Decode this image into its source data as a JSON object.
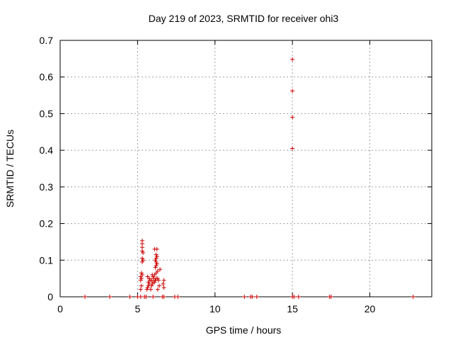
{
  "chart_data": {
    "type": "scatter",
    "title": "Day 219 of 2023, SRMTID for receiver ohi3",
    "xlabel": "GPS time / hours",
    "ylabel": "SRMTID / TECUs",
    "xlim": [
      0,
      24
    ],
    "ylim": [
      0,
      0.7
    ],
    "xticks": [
      0,
      5,
      10,
      15,
      20
    ],
    "yticks": [
      0,
      0.1,
      0.2,
      0.3,
      0.4,
      0.5,
      0.6,
      0.7
    ],
    "xtick_labels": [
      "0",
      "5",
      "10",
      "15",
      "20"
    ],
    "ytick_labels": [
      "0",
      "0.1",
      "0.2",
      "0.3",
      "0.4",
      "0.5",
      "0.6",
      "0.7"
    ],
    "grid": true,
    "marker": "+",
    "marker_color": "#cc0000",
    "series": [
      {
        "points": [
          [
            1.6,
            0.0
          ],
          [
            3.2,
            0.0
          ],
          [
            4.5,
            0.0
          ],
          [
            5.0,
            0.0
          ],
          [
            5.2,
            0.0
          ],
          [
            5.45,
            0.0
          ],
          [
            5.55,
            0.0
          ],
          [
            6.0,
            0.0
          ],
          [
            6.6,
            0.0
          ],
          [
            6.7,
            0.0
          ],
          [
            7.4,
            0.0
          ],
          [
            7.6,
            0.0
          ],
          [
            11.9,
            0.0
          ],
          [
            12.3,
            0.0
          ],
          [
            12.4,
            0.0
          ],
          [
            12.7,
            0.0
          ],
          [
            15.0,
            0.0
          ],
          [
            15.1,
            0.0
          ],
          [
            15.4,
            0.0
          ],
          [
            17.4,
            0.0
          ],
          [
            17.5,
            0.0
          ],
          [
            22.8,
            0.0
          ],
          [
            5.2,
            0.02
          ],
          [
            5.25,
            0.03
          ],
          [
            5.2,
            0.045
          ],
          [
            5.25,
            0.05
          ],
          [
            5.2,
            0.055
          ],
          [
            5.3,
            0.06
          ],
          [
            5.25,
            0.065
          ],
          [
            5.3,
            0.095
          ],
          [
            5.35,
            0.1
          ],
          [
            5.3,
            0.105
          ],
          [
            5.35,
            0.12
          ],
          [
            5.3,
            0.125
          ],
          [
            5.3,
            0.135
          ],
          [
            5.3,
            0.145
          ],
          [
            5.3,
            0.153
          ],
          [
            5.6,
            0.02
          ],
          [
            5.65,
            0.025
          ],
          [
            5.7,
            0.03
          ],
          [
            5.75,
            0.035
          ],
          [
            5.7,
            0.04
          ],
          [
            5.8,
            0.045
          ],
          [
            5.75,
            0.05
          ],
          [
            5.65,
            0.055
          ],
          [
            5.85,
            0.02
          ],
          [
            5.9,
            0.03
          ],
          [
            5.95,
            0.035
          ],
          [
            6.0,
            0.04
          ],
          [
            5.9,
            0.045
          ],
          [
            6.05,
            0.05
          ],
          [
            6.0,
            0.055
          ],
          [
            5.95,
            0.06
          ],
          [
            6.1,
            0.04
          ],
          [
            6.15,
            0.045
          ],
          [
            6.2,
            0.05
          ],
          [
            6.1,
            0.06
          ],
          [
            6.2,
            0.065
          ],
          [
            6.3,
            0.07
          ],
          [
            6.15,
            0.08
          ],
          [
            6.2,
            0.085
          ],
          [
            6.25,
            0.09
          ],
          [
            6.2,
            0.095
          ],
          [
            6.15,
            0.1
          ],
          [
            6.2,
            0.105
          ],
          [
            6.25,
            0.11
          ],
          [
            6.2,
            0.115
          ],
          [
            6.1,
            0.13
          ],
          [
            6.25,
            0.13
          ],
          [
            6.3,
            0.02
          ],
          [
            6.4,
            0.03
          ],
          [
            6.35,
            0.045
          ],
          [
            6.3,
            0.05
          ],
          [
            6.45,
            0.075
          ],
          [
            6.7,
            0.025
          ],
          [
            6.65,
            0.035
          ],
          [
            6.7,
            0.045
          ],
          [
            15.0,
            0.405
          ],
          [
            15.0,
            0.49
          ],
          [
            15.0,
            0.562
          ],
          [
            15.0,
            0.648
          ]
        ]
      }
    ]
  }
}
